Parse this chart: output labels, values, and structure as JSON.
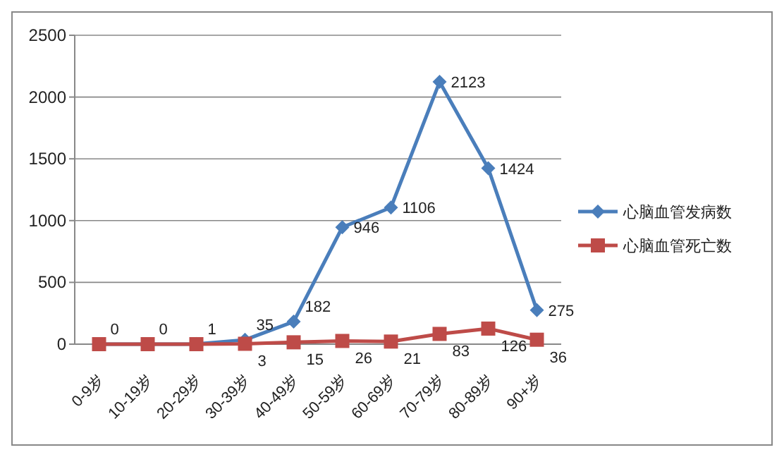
{
  "chart_data": {
    "type": "line",
    "categories": [
      "0-9岁",
      "10-19岁",
      "20-29岁",
      "30-39岁",
      "40-49岁",
      "50-59岁",
      "60-69岁",
      "70-79岁",
      "80-89岁",
      "90+岁"
    ],
    "series": [
      {
        "name": "心脑血管发病数",
        "color": "#4a7ebb",
        "marker": "diamond",
        "values": [
          0,
          0,
          1,
          35,
          182,
          946,
          1106,
          2123,
          1424,
          275
        ],
        "value_labels": [
          "0",
          "0",
          "1",
          "35",
          "182",
          "946",
          "1106",
          "2123",
          "1424",
          "275"
        ]
      },
      {
        "name": "心脑血管死亡数",
        "color": "#be4b48",
        "marker": "square",
        "values": [
          0,
          0,
          0,
          3,
          15,
          26,
          21,
          83,
          126,
          36
        ],
        "value_labels": [
          null,
          null,
          null,
          "3",
          "15",
          "26",
          "21",
          "83",
          "126",
          "36"
        ]
      }
    ],
    "ylim": [
      0,
      2500
    ],
    "yticks": [
      0,
      500,
      1000,
      1500,
      2000,
      2500
    ],
    "grid": "y",
    "legend": "right"
  }
}
